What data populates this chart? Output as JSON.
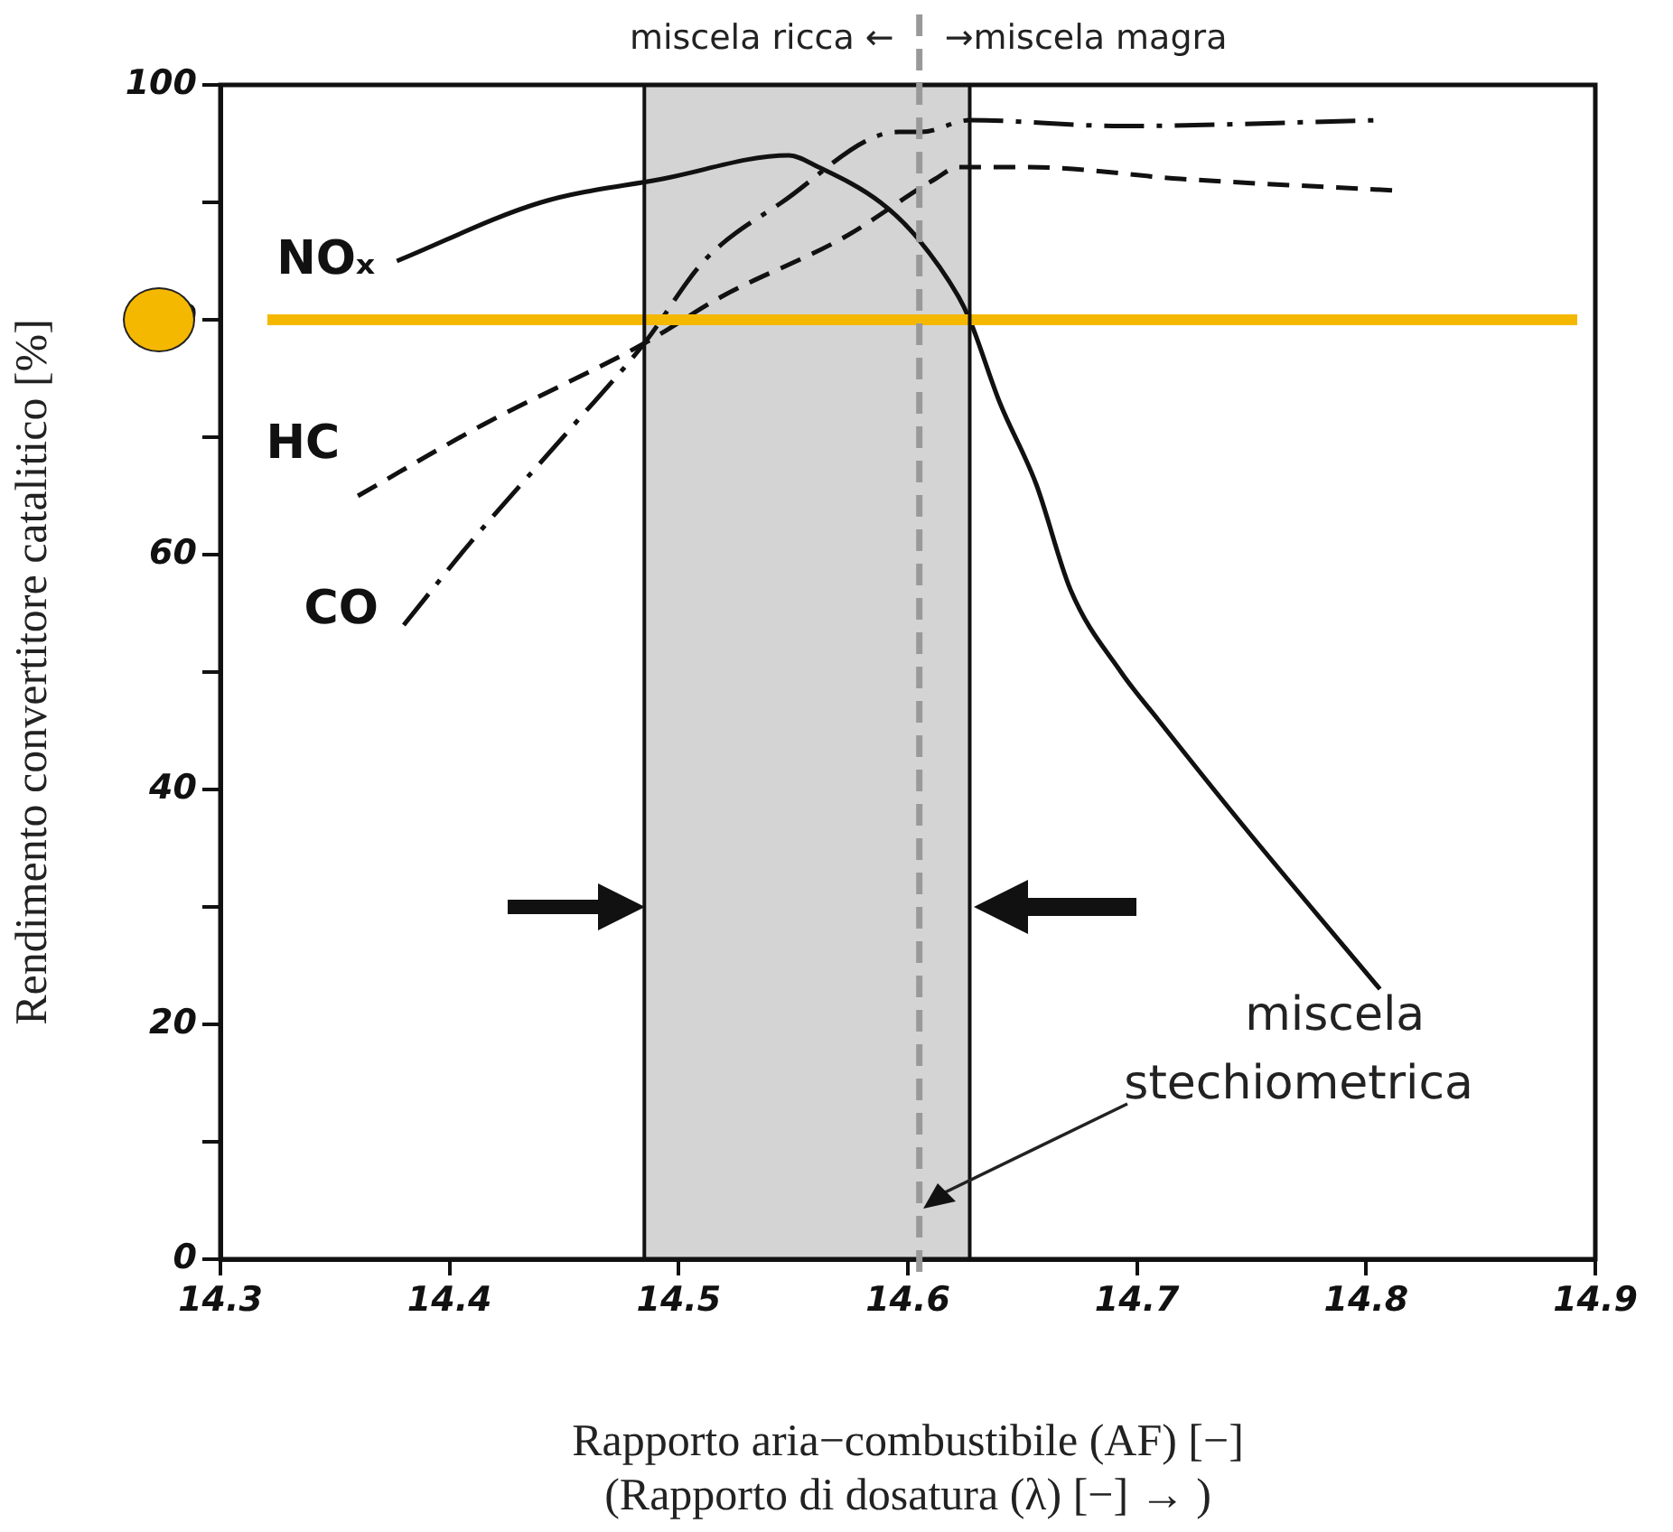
{
  "chart_data": {
    "type": "line",
    "xlabel": "Rapporto aria−combustibile (AF) [−]\n(Rapporto di dosatura (λ) [−] → )",
    "ylabel": "Rendimento convertitore catalitico [%]",
    "xlim": [
      14.3,
      14.9
    ],
    "ylim": [
      0,
      100
    ],
    "xticks": [
      14.3,
      14.4,
      14.5,
      14.6,
      14.7,
      14.8,
      14.9
    ],
    "yticks": [
      0,
      {
        "value": 10,
        "label": null
      },
      20,
      {
        "value": 30,
        "label": null
      },
      40,
      {
        "value": 50,
        "label": null
      },
      60,
      {
        "value": 70,
        "label": null
      },
      80,
      {
        "value": 90,
        "label": null
      },
      100
    ],
    "grid": false,
    "legend": false,
    "marker": "none",
    "series": [
      {
        "name": "NOₓ",
        "color": "#111111",
        "line_style": "solid",
        "x": [
          14.377,
          14.44,
          14.493,
          14.548,
          14.561,
          14.588,
          14.604,
          14.622,
          14.627,
          14.64,
          14.656,
          14.671,
          14.693,
          14.709,
          14.746,
          14.806
        ],
        "values": [
          85,
          90,
          92,
          94,
          93,
          90,
          87,
          82,
          80,
          73,
          66,
          57,
          50,
          46,
          37,
          23
        ]
      },
      {
        "name": "HC",
        "color": "#111111",
        "line_style": "dashed",
        "x": [
          14.36,
          14.414,
          14.485,
          14.519,
          14.572,
          14.612,
          14.622,
          14.653,
          14.719,
          14.813
        ],
        "values": [
          65,
          71,
          78,
          82,
          87,
          92,
          93,
          93,
          92,
          91
        ]
      },
      {
        "name": "CO",
        "color": "#111111",
        "line_style": "dashdot",
        "x": [
          14.38,
          14.409,
          14.454,
          14.485,
          14.511,
          14.545,
          14.596,
          14.606,
          14.627,
          14.693,
          14.806
        ],
        "values": [
          54,
          61,
          71,
          78,
          85,
          90,
          96,
          96,
          97,
          96.5,
          97
        ]
      }
    ],
    "ref_lines": [
      {
        "axis": "y",
        "value": 80,
        "color": "#f5b800",
        "line_style": "solid"
      },
      {
        "axis": "x",
        "value": 14.605,
        "color": "#999999",
        "line_style": "dashed"
      },
      {
        "axis": "x",
        "value": 14.485,
        "color": "#111111",
        "line_style": "solid"
      },
      {
        "axis": "x",
        "value": 14.627,
        "color": "#111111",
        "line_style": "solid"
      }
    ],
    "bands": [
      {
        "axis": "x",
        "from": 14.485,
        "to": 14.627,
        "color": "#d4d4d4"
      }
    ],
    "annotations": [
      "miscela ricca ←",
      "→miscela magra",
      "miscela\nstechiometrica"
    ]
  }
}
